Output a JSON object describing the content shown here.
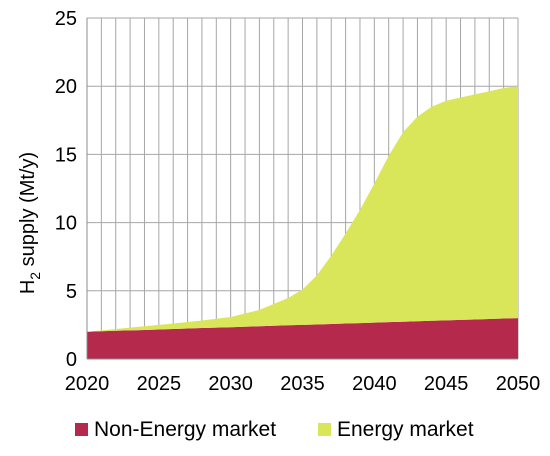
{
  "chart_data": {
    "type": "area",
    "title": "",
    "xlabel": "",
    "ylabel": {
      "main": "H",
      "subscript": "2",
      "rest": " supply (Mt/y)"
    },
    "xlim": [
      2020,
      2050
    ],
    "ylim": [
      0,
      25
    ],
    "x_ticks": [
      {
        "value": 2020,
        "label": "2020"
      },
      {
        "value": 2025,
        "label": "2025"
      },
      {
        "value": 2030,
        "label": "2030"
      },
      {
        "value": 2035,
        "label": "2035"
      },
      {
        "value": 2040,
        "label": "2040"
      },
      {
        "value": 2045,
        "label": "2045"
      },
      {
        "value": 2050,
        "label": "2050"
      }
    ],
    "y_ticks": [
      {
        "value": 0,
        "label": "0"
      },
      {
        "value": 5,
        "label": "5"
      },
      {
        "value": 10,
        "label": "10"
      },
      {
        "value": 15,
        "label": "15"
      },
      {
        "value": 20,
        "label": "20"
      },
      {
        "value": 25,
        "label": "25"
      }
    ],
    "vertical_grid_step": 1,
    "grid": true,
    "stacked": true,
    "legend_position": "bottom",
    "x": [
      2020,
      2022,
      2024,
      2026,
      2028,
      2030,
      2032,
      2034,
      2035,
      2036,
      2037,
      2038,
      2039,
      2040,
      2041,
      2042,
      2043,
      2044,
      2045,
      2046,
      2047,
      2048,
      2049,
      2050
    ],
    "series": [
      {
        "name": "Non-Energy market",
        "color": "#b5294d",
        "values": [
          2.0,
          2.07,
          2.13,
          2.2,
          2.27,
          2.33,
          2.4,
          2.47,
          2.5,
          2.53,
          2.57,
          2.6,
          2.63,
          2.67,
          2.7,
          2.73,
          2.77,
          2.8,
          2.83,
          2.87,
          2.9,
          2.93,
          2.97,
          3.0
        ]
      },
      {
        "name": "Energy market",
        "color": "#d9e65a",
        "values": [
          0.0,
          0.13,
          0.27,
          0.4,
          0.55,
          0.75,
          1.2,
          2.0,
          2.6,
          3.6,
          5.0,
          6.6,
          8.3,
          10.2,
          12.2,
          13.9,
          15.0,
          15.7,
          16.1,
          16.3,
          16.5,
          16.7,
          16.9,
          17.0
        ]
      }
    ]
  }
}
